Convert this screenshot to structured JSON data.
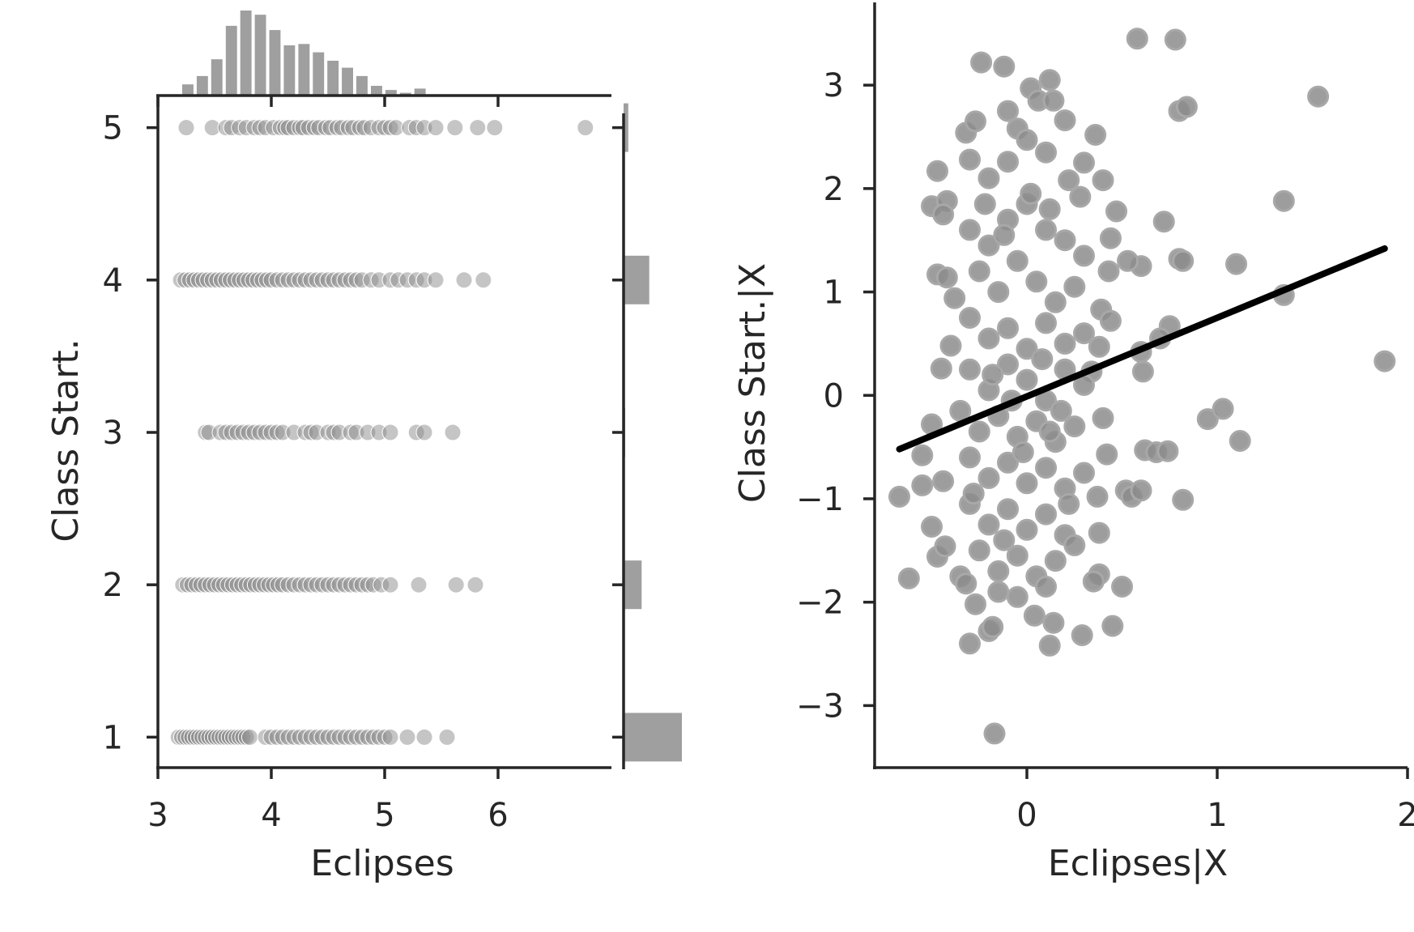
{
  "chart_data": [
    {
      "type": "scatter",
      "title": "",
      "xlabel": "Eclipses",
      "ylabel": "Class Start.",
      "xlim": [
        3,
        7
      ],
      "ylim": [
        0.8,
        5.2
      ],
      "xticks": [
        "3",
        "4",
        "5",
        "6"
      ],
      "yticks": [
        "1",
        "2",
        "3",
        "4",
        "5"
      ],
      "grid": false,
      "marker_color": "#8c8c8c",
      "point_opacity": 0.5,
      "rows": [
        {
          "y": 5,
          "x": [
            3.25,
            3.48,
            3.6,
            3.65,
            3.72,
            3.78,
            3.85,
            3.9,
            3.95,
            4.02,
            4.08,
            4.12,
            4.15,
            4.2,
            4.25,
            4.28,
            4.33,
            4.38,
            4.42,
            4.48,
            4.52,
            4.58,
            4.62,
            4.68,
            4.72,
            4.78,
            4.82,
            4.88,
            4.95,
            5.0,
            5.05,
            5.1,
            5.22,
            5.28,
            5.35,
            5.45,
            5.62,
            5.82,
            5.97,
            6.77
          ]
        },
        {
          "y": 4,
          "x": [
            3.2,
            3.24,
            3.28,
            3.32,
            3.36,
            3.4,
            3.44,
            3.48,
            3.52,
            3.56,
            3.6,
            3.64,
            3.68,
            3.72,
            3.76,
            3.8,
            3.84,
            3.88,
            3.92,
            3.96,
            4.0,
            4.05,
            4.1,
            4.15,
            4.2,
            4.25,
            4.3,
            4.35,
            4.4,
            4.45,
            4.5,
            4.55,
            4.6,
            4.65,
            4.7,
            4.75,
            4.8,
            4.88,
            4.95,
            5.05,
            5.12,
            5.2,
            5.28,
            5.35,
            5.45,
            5.7,
            5.87
          ]
        },
        {
          "y": 3,
          "x": [
            3.42,
            3.45,
            3.55,
            3.6,
            3.65,
            3.7,
            3.75,
            3.8,
            3.85,
            3.9,
            3.95,
            4.0,
            4.05,
            4.1,
            4.2,
            4.3,
            4.35,
            4.4,
            4.5,
            4.55,
            4.6,
            4.7,
            4.75,
            4.85,
            4.95,
            5.05,
            5.28,
            5.35,
            5.6
          ]
        },
        {
          "y": 2,
          "x": [
            3.22,
            3.26,
            3.3,
            3.34,
            3.38,
            3.42,
            3.46,
            3.5,
            3.54,
            3.58,
            3.62,
            3.66,
            3.7,
            3.74,
            3.78,
            3.82,
            3.86,
            3.9,
            3.94,
            3.98,
            4.02,
            4.06,
            4.1,
            4.15,
            4.2,
            4.25,
            4.3,
            4.35,
            4.4,
            4.45,
            4.5,
            4.55,
            4.6,
            4.65,
            4.7,
            4.75,
            4.8,
            4.85,
            4.9,
            4.97,
            5.05,
            5.3,
            5.63,
            5.8
          ]
        },
        {
          "y": 1,
          "x": [
            3.18,
            3.21,
            3.24,
            3.27,
            3.3,
            3.33,
            3.36,
            3.39,
            3.42,
            3.45,
            3.48,
            3.51,
            3.54,
            3.57,
            3.6,
            3.63,
            3.66,
            3.69,
            3.72,
            3.75,
            3.78,
            3.81,
            3.95,
            4.0,
            4.05,
            4.1,
            4.15,
            4.2,
            4.25,
            4.3,
            4.35,
            4.4,
            4.45,
            4.5,
            4.55,
            4.6,
            4.65,
            4.7,
            4.75,
            4.8,
            4.85,
            4.9,
            4.95,
            5.0,
            5.05,
            5.2,
            5.35,
            5.55
          ]
        }
      ],
      "marginal_x_histogram": {
        "bin_width": 0.128,
        "bins_start": 3.2,
        "counts": [
          8,
          14,
          26,
          50,
          61,
          58,
          47,
          36,
          37,
          31,
          25,
          20,
          14,
          7,
          4,
          2,
          5
        ]
      },
      "marginal_y_histogram": {
        "bars": [
          {
            "y": 5,
            "count": 8
          },
          {
            "y": 4,
            "count": 44
          },
          {
            "y": 3,
            "count": 2
          },
          {
            "y": 2,
            "count": 31
          },
          {
            "y": 1,
            "count": 100
          }
        ]
      }
    },
    {
      "type": "scatter",
      "title": "",
      "xlabel": "Eclipses|X",
      "ylabel": "Class Start.|X",
      "xlim": [
        -0.8,
        2
      ],
      "ylim": [
        -3.6,
        3.8
      ],
      "xticks": [
        "0",
        "1",
        "2"
      ],
      "yticks": [
        "−3",
        "−2",
        "−1",
        "0",
        "1",
        "2",
        "3"
      ],
      "grid": false,
      "marker_color": "#8c8c8c",
      "regression_line": {
        "x": [
          -0.67,
          1.88
        ],
        "y": [
          -0.52,
          1.42
        ],
        "color": "#000000"
      },
      "points": [
        [
          -0.24,
          3.22
        ],
        [
          -0.12,
          3.18
        ],
        [
          0.12,
          3.05
        ],
        [
          0.02,
          2.97
        ],
        [
          0.58,
          3.45
        ],
        [
          0.78,
          3.44
        ],
        [
          1.53,
          2.89
        ],
        [
          0.8,
          2.75
        ],
        [
          0.84,
          2.79
        ],
        [
          1.35,
          1.88
        ],
        [
          0.72,
          1.68
        ],
        [
          1.1,
          1.27
        ],
        [
          0.8,
          1.32
        ],
        [
          0.82,
          1.3
        ],
        [
          0.6,
          1.25
        ],
        [
          0.53,
          1.3
        ],
        [
          1.35,
          0.97
        ],
        [
          0.75,
          0.67
        ],
        [
          0.7,
          0.55
        ],
        [
          0.6,
          0.42
        ],
        [
          0.61,
          0.23
        ],
        [
          1.88,
          0.33
        ],
        [
          0.95,
          -0.23
        ],
        [
          1.03,
          -0.13
        ],
        [
          1.12,
          -0.44
        ],
        [
          0.62,
          -0.53
        ],
        [
          0.68,
          -0.55
        ],
        [
          0.74,
          -0.54
        ],
        [
          0.82,
          -1.01
        ],
        [
          0.52,
          -0.92
        ],
        [
          0.55,
          -0.98
        ],
        [
          0.6,
          -0.92
        ],
        [
          -0.67,
          -0.98
        ],
        [
          -0.62,
          -1.77
        ],
        [
          -0.55,
          -0.87
        ],
        [
          -0.5,
          -1.27
        ],
        [
          -0.47,
          -1.56
        ],
        [
          -0.43,
          -1.46
        ],
        [
          -0.35,
          -1.75
        ],
        [
          -0.32,
          -1.82
        ],
        [
          -0.27,
          -2.02
        ],
        [
          -0.3,
          -2.4
        ],
        [
          -0.2,
          -2.28
        ],
        [
          -0.18,
          -2.24
        ],
        [
          -0.17,
          -3.27
        ],
        [
          0.04,
          -2.13
        ],
        [
          0.12,
          -2.42
        ],
        [
          0.14,
          -2.2
        ],
        [
          0.29,
          -2.32
        ],
        [
          0.45,
          -2.23
        ],
        [
          0.5,
          -1.85
        ],
        [
          0.38,
          -1.73
        ],
        [
          0.35,
          -1.8
        ],
        [
          0.38,
          -1.33
        ],
        [
          -0.32,
          2.54
        ],
        [
          -0.27,
          2.65
        ],
        [
          -0.3,
          2.28
        ],
        [
          -0.47,
          2.17
        ],
        [
          -0.5,
          1.83
        ],
        [
          -0.42,
          1.88
        ],
        [
          -0.44,
          1.75
        ],
        [
          -0.47,
          1.17
        ],
        [
          -0.42,
          1.14
        ],
        [
          -0.38,
          0.94
        ],
        [
          -0.4,
          0.48
        ],
        [
          -0.45,
          0.26
        ],
        [
          -0.5,
          -0.28
        ],
        [
          -0.55,
          -0.58
        ],
        [
          -0.44,
          -0.83
        ],
        [
          0.36,
          2.52
        ],
        [
          0.2,
          2.66
        ],
        [
          0.3,
          2.25
        ],
        [
          0.4,
          2.08
        ],
        [
          0.47,
          1.78
        ],
        [
          0.44,
          1.52
        ],
        [
          0.43,
          1.2
        ],
        [
          0.39,
          0.83
        ],
        [
          0.44,
          0.72
        ],
        [
          0.38,
          0.47
        ],
        [
          0.34,
          0.23
        ],
        [
          0.4,
          -0.22
        ],
        [
          0.42,
          -0.57
        ],
        [
          0.37,
          -0.98
        ],
        [
          -0.1,
          2.75
        ],
        [
          0.06,
          2.85
        ],
        [
          0.14,
          2.85
        ],
        [
          -0.05,
          2.58
        ],
        [
          0.0,
          2.47
        ],
        [
          0.1,
          2.35
        ],
        [
          -0.2,
          2.1
        ],
        [
          -0.1,
          2.26
        ],
        [
          0.22,
          2.08
        ],
        [
          0.28,
          1.92
        ],
        [
          -0.3,
          1.6
        ],
        [
          -0.2,
          1.45
        ],
        [
          -0.1,
          1.7
        ],
        [
          0.0,
          1.85
        ],
        [
          0.1,
          1.6
        ],
        [
          0.2,
          1.5
        ],
        [
          0.3,
          1.35
        ],
        [
          -0.25,
          1.2
        ],
        [
          -0.15,
          1.0
        ],
        [
          -0.05,
          1.3
        ],
        [
          0.05,
          1.1
        ],
        [
          0.15,
          0.9
        ],
        [
          0.25,
          1.05
        ],
        [
          -0.3,
          0.75
        ],
        [
          -0.2,
          0.55
        ],
        [
          -0.1,
          0.65
        ],
        [
          0.0,
          0.45
        ],
        [
          0.1,
          0.7
        ],
        [
          0.2,
          0.5
        ],
        [
          0.3,
          0.6
        ],
        [
          -0.3,
          0.25
        ],
        [
          -0.2,
          0.05
        ],
        [
          -0.1,
          0.3
        ],
        [
          0.0,
          0.15
        ],
        [
          0.1,
          -0.05
        ],
        [
          0.2,
          0.25
        ],
        [
          0.3,
          0.1
        ],
        [
          -0.35,
          -0.15
        ],
        [
          -0.25,
          -0.35
        ],
        [
          -0.15,
          -0.2
        ],
        [
          -0.05,
          -0.4
        ],
        [
          0.05,
          -0.25
        ],
        [
          0.15,
          -0.45
        ],
        [
          0.25,
          -0.3
        ],
        [
          -0.3,
          -0.6
        ],
        [
          -0.2,
          -0.8
        ],
        [
          -0.1,
          -0.65
        ],
        [
          0.0,
          -0.85
        ],
        [
          0.1,
          -0.7
        ],
        [
          0.2,
          -0.9
        ],
        [
          0.3,
          -0.75
        ],
        [
          -0.3,
          -1.05
        ],
        [
          -0.2,
          -1.25
        ],
        [
          -0.1,
          -1.1
        ],
        [
          0.0,
          -1.3
        ],
        [
          0.1,
          -1.15
        ],
        [
          0.2,
          -1.35
        ],
        [
          -0.25,
          -1.5
        ],
        [
          -0.15,
          -1.7
        ],
        [
          -0.05,
          -1.55
        ],
        [
          0.05,
          -1.75
        ],
        [
          0.15,
          -1.6
        ],
        [
          0.25,
          -1.45
        ],
        [
          -0.15,
          -1.9
        ],
        [
          -0.05,
          -1.95
        ],
        [
          0.1,
          -1.85
        ],
        [
          -0.22,
          1.85
        ],
        [
          -0.12,
          1.55
        ],
        [
          0.02,
          1.95
        ],
        [
          0.12,
          1.8
        ],
        [
          -0.18,
          0.2
        ],
        [
          -0.08,
          -0.05
        ],
        [
          0.08,
          0.35
        ],
        [
          0.18,
          -0.15
        ],
        [
          -0.28,
          -0.95
        ],
        [
          -0.02,
          -0.55
        ],
        [
          0.22,
          -1.05
        ],
        [
          -0.12,
          -1.4
        ],
        [
          0.12,
          -0.35
        ]
      ]
    }
  ]
}
